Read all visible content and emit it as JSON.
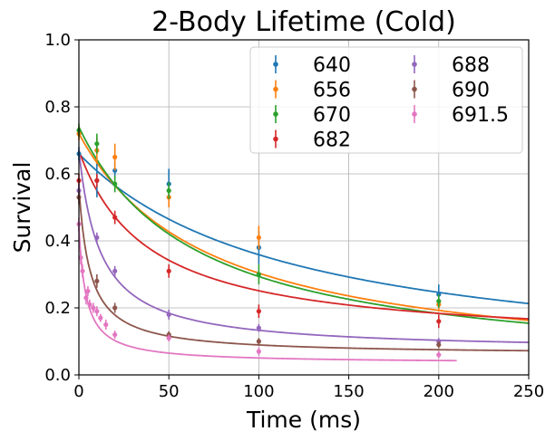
{
  "chart_data": {
    "type": "scatter",
    "title": "2-Body Lifetime (Cold)",
    "xlabel": "Time (ms)",
    "ylabel": "Survival",
    "xlim": [
      0,
      250
    ],
    "ylim": [
      0.0,
      1.0
    ],
    "xticks": [
      0,
      50,
      100,
      150,
      200,
      250
    ],
    "yticks": [
      "0.0",
      "0.2",
      "0.4",
      "0.6",
      "0.8",
      "1.0"
    ],
    "grid": true,
    "legend_position": "top-right",
    "legend_columns": 2,
    "series": [
      {
        "name": "640",
        "color": "#1f77b4",
        "fit": {
          "a": 0.66,
          "k": 0.0084
        },
        "points": [
          [
            0,
            0.66,
            0.02
          ],
          [
            10,
            0.58,
            0.05
          ],
          [
            20,
            0.61,
            0.025
          ],
          [
            50,
            0.57,
            0.045
          ],
          [
            100,
            0.38,
            0.05
          ],
          [
            200,
            0.24,
            0.03
          ]
        ]
      },
      {
        "name": "656",
        "color": "#ff7f0e",
        "fit": {
          "a": 0.72,
          "k": 0.0137
        },
        "points": [
          [
            0,
            0.72,
            0.02
          ],
          [
            10,
            0.67,
            0.04
          ],
          [
            20,
            0.65,
            0.04
          ],
          [
            50,
            0.53,
            0.03
          ],
          [
            100,
            0.41,
            0.035
          ],
          [
            200,
            0.21,
            0.02
          ]
        ]
      },
      {
        "name": "670",
        "color": "#2ca02c",
        "fit": {
          "a": 0.74,
          "k": 0.0152
        },
        "points": [
          [
            0,
            0.73,
            0.02
          ],
          [
            10,
            0.69,
            0.03
          ],
          [
            20,
            0.57,
            0.025
          ],
          [
            50,
            0.55,
            0.025
          ],
          [
            100,
            0.3,
            0.03
          ],
          [
            200,
            0.22,
            0.02
          ]
        ]
      },
      {
        "name": "682",
        "color": "#d62728",
        "fit": {
          "a": 0.67,
          "k": 0.026,
          "c": 0.09
        },
        "points": [
          [
            0,
            0.58,
            0.02
          ],
          [
            10,
            0.58,
            0.02
          ],
          [
            20,
            0.47,
            0.02
          ],
          [
            50,
            0.31,
            0.02
          ],
          [
            100,
            0.19,
            0.02
          ],
          [
            200,
            0.16,
            0.02
          ]
        ]
      },
      {
        "name": "688",
        "color": "#9467bd",
        "fit": {
          "a": 0.67,
          "k": 0.085,
          "c": 0.07
        },
        "points": [
          [
            0,
            0.55,
            0.02
          ],
          [
            10,
            0.41,
            0.015
          ],
          [
            20,
            0.31,
            0.015
          ],
          [
            50,
            0.18,
            0.015
          ],
          [
            100,
            0.14,
            0.012
          ],
          [
            200,
            0.1,
            0.01
          ]
        ]
      },
      {
        "name": "690",
        "color": "#8c564b",
        "fit": {
          "a": 0.56,
          "k": 0.16,
          "c": 0.06
        },
        "points": [
          [
            0,
            0.53,
            0.02
          ],
          [
            10,
            0.28,
            0.02
          ],
          [
            20,
            0.2,
            0.015
          ],
          [
            50,
            0.12,
            0.01
          ],
          [
            100,
            0.1,
            0.01
          ],
          [
            200,
            0.09,
            0.01
          ]
        ]
      },
      {
        "name": "691.5",
        "color": "#e377c2",
        "fit": {
          "a": 0.44,
          "k": 0.25,
          "c": 0.035,
          "xmax": 210
        },
        "points": [
          [
            0,
            0.45,
            0.02
          ],
          [
            1,
            0.35,
            0.02
          ],
          [
            2,
            0.31,
            0.02
          ],
          [
            4,
            0.23,
            0.02
          ],
          [
            5,
            0.25,
            0.015
          ],
          [
            6,
            0.21,
            0.015
          ],
          [
            8,
            0.2,
            0.015
          ],
          [
            10,
            0.19,
            0.015
          ],
          [
            12,
            0.17,
            0.012
          ],
          [
            15,
            0.15,
            0.015
          ],
          [
            20,
            0.12,
            0.012
          ],
          [
            50,
            0.11,
            0.01
          ],
          [
            100,
            0.07,
            0.012
          ],
          [
            200,
            0.06,
            0.01
          ]
        ]
      }
    ]
  }
}
